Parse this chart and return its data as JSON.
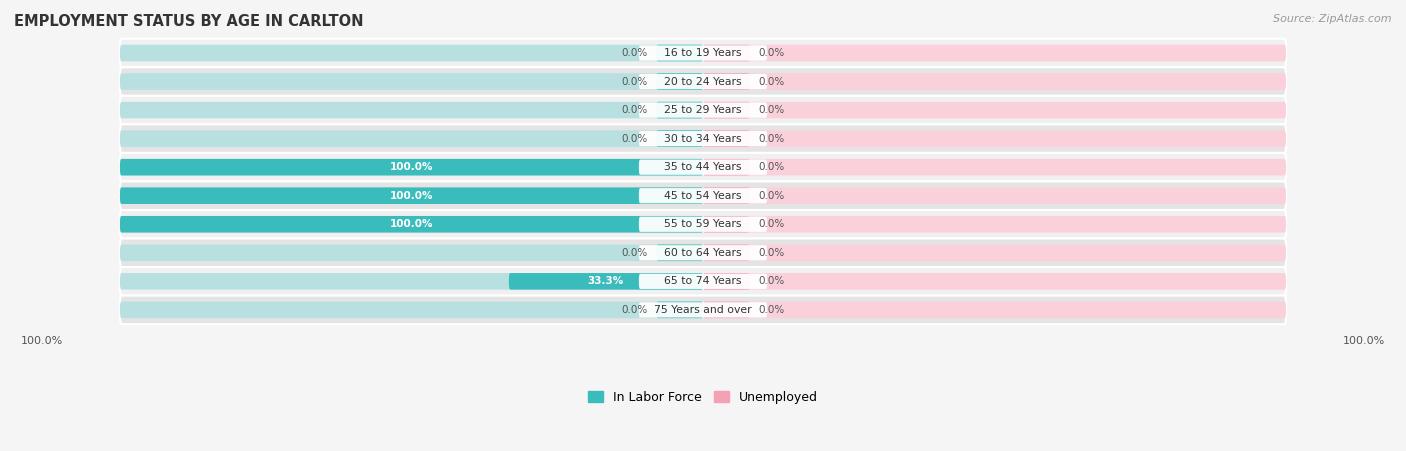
{
  "title": "EMPLOYMENT STATUS BY AGE IN CARLTON",
  "source": "Source: ZipAtlas.com",
  "categories": [
    "16 to 19 Years",
    "20 to 24 Years",
    "25 to 29 Years",
    "30 to 34 Years",
    "35 to 44 Years",
    "45 to 54 Years",
    "55 to 59 Years",
    "60 to 64 Years",
    "65 to 74 Years",
    "75 Years and over"
  ],
  "in_labor_force": [
    0.0,
    0.0,
    0.0,
    0.0,
    100.0,
    100.0,
    100.0,
    0.0,
    33.3,
    0.0
  ],
  "unemployed": [
    0.0,
    0.0,
    0.0,
    0.0,
    0.0,
    0.0,
    0.0,
    0.0,
    0.0,
    0.0
  ],
  "labor_color": "#3bbcbc",
  "unemployed_color": "#f4a0b5",
  "labor_bg_color": "#b8e0e0",
  "unemployed_bg_color": "#fad0da",
  "row_bg_light": "#f0f0f0",
  "row_bg_dark": "#e4e4e4",
  "title_color": "#333333",
  "source_color": "#999999",
  "label_color_inside": "#ffffff",
  "label_color_outside": "#555555",
  "legend_labor": "In Labor Force",
  "legend_unemployed": "Unemployed",
  "axis_left_label": "100.0%",
  "axis_right_label": "100.0%",
  "max_value": 100.0,
  "stub_pct": 8.0
}
